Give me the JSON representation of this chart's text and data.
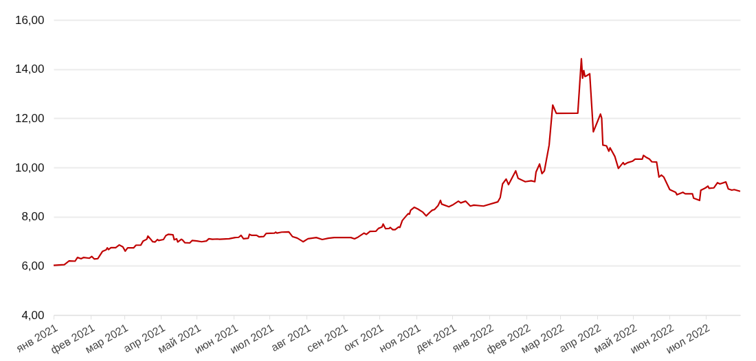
{
  "chart_data": {
    "type": "line",
    "grid": "y",
    "marker": "none",
    "line_style": "solid",
    "xlim": [
      "2021-01-01",
      "2022-07-30"
    ],
    "ylim": [
      4,
      16
    ],
    "yticks": [
      {
        "value": 4,
        "label": "4,00"
      },
      {
        "value": 6,
        "label": "6,00"
      },
      {
        "value": 8,
        "label": "8,00"
      },
      {
        "value": 10,
        "label": "10,00"
      },
      {
        "value": 12,
        "label": "12,00"
      },
      {
        "value": 14,
        "label": "14,00"
      },
      {
        "value": 16,
        "label": "16,00"
      }
    ],
    "xticks": [
      {
        "value": "2021-01-01",
        "label": "янв 2021"
      },
      {
        "value": "2021-02-01",
        "label": "фев 2021"
      },
      {
        "value": "2021-03-01",
        "label": "мар 2021"
      },
      {
        "value": "2021-04-01",
        "label": "апр 2021"
      },
      {
        "value": "2021-05-01",
        "label": "май 2021"
      },
      {
        "value": "2021-06-01",
        "label": "июн 2021"
      },
      {
        "value": "2021-07-01",
        "label": "июл 2021"
      },
      {
        "value": "2021-08-01",
        "label": "авг 2021"
      },
      {
        "value": "2021-09-01",
        "label": "сен 2021"
      },
      {
        "value": "2021-10-01",
        "label": "окт 2021"
      },
      {
        "value": "2021-11-01",
        "label": "ноя 2021"
      },
      {
        "value": "2021-12-01",
        "label": "дек 2021"
      },
      {
        "value": "2022-01-01",
        "label": "янв 2022"
      },
      {
        "value": "2022-02-01",
        "label": "фев 2022"
      },
      {
        "value": "2022-03-01",
        "label": "мар 2022"
      },
      {
        "value": "2022-04-01",
        "label": "апр 2022"
      },
      {
        "value": "2022-05-01",
        "label": "май 2022"
      },
      {
        "value": "2022-06-01",
        "label": "июн 2022"
      },
      {
        "value": "2022-07-01",
        "label": "июл 2022"
      }
    ],
    "series": [
      {
        "color": "#c00000",
        "x": [
          "2021-01-01",
          "2021-01-10",
          "2021-01-14",
          "2021-01-19",
          "2021-01-21",
          "2021-01-24",
          "2021-01-26",
          "2021-01-31",
          "2021-02-02",
          "2021-02-04",
          "2021-02-07",
          "2021-02-11",
          "2021-02-14",
          "2021-02-15",
          "2021-02-16",
          "2021-02-18",
          "2021-02-22",
          "2021-02-25",
          "2021-02-28",
          "2021-03-02",
          "2021-03-04",
          "2021-03-09",
          "2021-03-11",
          "2021-03-15",
          "2021-03-17",
          "2021-03-20",
          "2021-03-21",
          "2021-03-23",
          "2021-03-25",
          "2021-03-27",
          "2021-03-29",
          "2021-03-30",
          "2021-04-03",
          "2021-04-05",
          "2021-04-07",
          "2021-04-11",
          "2021-04-12",
          "2021-04-14",
          "2021-04-15",
          "2021-04-18",
          "2021-04-19",
          "2021-04-21",
          "2021-04-25",
          "2021-04-27",
          "2021-05-01",
          "2021-05-05",
          "2021-05-09",
          "2021-05-11",
          "2021-05-14",
          "2021-05-18",
          "2021-05-20",
          "2021-05-28",
          "2021-06-02",
          "2021-06-05",
          "2021-06-07",
          "2021-06-09",
          "2021-06-13",
          "2021-06-14",
          "2021-06-16",
          "2021-06-20",
          "2021-06-22",
          "2021-06-26",
          "2021-06-28",
          "2021-07-05",
          "2021-07-06",
          "2021-07-07",
          "2021-07-11",
          "2021-07-17",
          "2021-07-20",
          "2021-07-24",
          "2021-07-28",
          "2021-07-29",
          "2021-08-02",
          "2021-08-09",
          "2021-08-14",
          "2021-08-19",
          "2021-08-24",
          "2021-09-07",
          "2021-09-10",
          "2021-09-13",
          "2021-09-18",
          "2021-09-20",
          "2021-09-23",
          "2021-09-28",
          "2021-09-30",
          "2021-10-03",
          "2021-10-04",
          "2021-10-06",
          "2021-10-09",
          "2021-10-10",
          "2021-10-12",
          "2021-10-14",
          "2021-10-17",
          "2021-10-18",
          "2021-10-20",
          "2021-10-24",
          "2021-10-25",
          "2021-10-26",
          "2021-10-27",
          "2021-10-30",
          "2021-11-02",
          "2021-11-06",
          "2021-11-09",
          "2021-11-12",
          "2021-11-14",
          "2021-11-16",
          "2021-11-19",
          "2021-11-21",
          "2021-11-22",
          "2021-11-28",
          "2021-12-01",
          "2021-12-06",
          "2021-12-08",
          "2021-12-12",
          "2021-12-16",
          "2021-12-19",
          "2021-12-27",
          "2022-01-08",
          "2022-01-10",
          "2022-01-12",
          "2022-01-15",
          "2022-01-17",
          "2022-01-23",
          "2022-01-25",
          "2022-01-31",
          "2022-02-05",
          "2022-02-08",
          "2022-02-09",
          "2022-02-12",
          "2022-02-14",
          "2022-02-16",
          "2022-02-20",
          "2022-02-23",
          "2022-02-26",
          "2022-03-16",
          "2022-03-19",
          "2022-03-20",
          "2022-03-21",
          "2022-03-22",
          "2022-03-23",
          "2022-03-26",
          "2022-03-29",
          "2022-04-04",
          "2022-04-05",
          "2022-04-06",
          "2022-04-09",
          "2022-04-11",
          "2022-04-12",
          "2022-04-16",
          "2022-04-19",
          "2022-04-23",
          "2022-04-24",
          "2022-04-27",
          "2022-05-01",
          "2022-05-03",
          "2022-05-09",
          "2022-05-10",
          "2022-05-12",
          "2022-05-15",
          "2022-05-17",
          "2022-05-21",
          "2022-05-23",
          "2022-05-25",
          "2022-05-27",
          "2022-06-01",
          "2022-06-06",
          "2022-06-07",
          "2022-06-12",
          "2022-06-14",
          "2022-06-20",
          "2022-06-21",
          "2022-06-26",
          "2022-06-27",
          "2022-07-01",
          "2022-07-03",
          "2022-07-04",
          "2022-07-08",
          "2022-07-11",
          "2022-07-13",
          "2022-07-18",
          "2022-07-20",
          "2022-07-23",
          "2022-07-25",
          "2022-07-30"
        ],
        "values": [
          6.02,
          6.05,
          6.2,
          6.19,
          6.34,
          6.29,
          6.34,
          6.31,
          6.38,
          6.28,
          6.29,
          6.59,
          6.65,
          6.73,
          6.66,
          6.74,
          6.74,
          6.85,
          6.77,
          6.6,
          6.73,
          6.73,
          6.84,
          6.84,
          7.01,
          7.08,
          7.21,
          7.1,
          6.98,
          6.97,
          7.07,
          7.03,
          7.07,
          7.23,
          7.28,
          7.26,
          7.06,
          7.1,
          6.97,
          7.08,
          7.05,
          6.94,
          6.93,
          7.03,
          7.01,
          6.98,
          7.01,
          7.1,
          7.08,
          7.09,
          7.08,
          7.1,
          7.15,
          7.16,
          7.24,
          7.1,
          7.12,
          7.28,
          7.24,
          7.24,
          7.18,
          7.19,
          7.32,
          7.33,
          7.37,
          7.33,
          7.37,
          7.38,
          7.19,
          7.13,
          7.01,
          6.98,
          7.1,
          7.15,
          7.07,
          7.12,
          7.15,
          7.15,
          7.1,
          7.17,
          7.33,
          7.28,
          7.4,
          7.41,
          7.52,
          7.58,
          7.7,
          7.51,
          7.52,
          7.56,
          7.47,
          7.47,
          7.58,
          7.56,
          7.84,
          8.07,
          8.12,
          8.1,
          8.26,
          8.38,
          8.31,
          8.19,
          8.03,
          8.17,
          8.26,
          8.29,
          8.45,
          8.66,
          8.51,
          8.4,
          8.47,
          8.63,
          8.56,
          8.63,
          8.43,
          8.47,
          8.43,
          8.6,
          8.77,
          9.33,
          9.53,
          9.3,
          9.86,
          9.56,
          9.42,
          9.46,
          9.42,
          9.81,
          10.14,
          9.75,
          9.86,
          10.91,
          12.54,
          12.2,
          12.21,
          14.42,
          13.63,
          13.94,
          13.7,
          13.72,
          13.81,
          11.45,
          12.17,
          12.01,
          10.91,
          10.88,
          10.66,
          10.8,
          10.45,
          9.96,
          10.2,
          10.12,
          10.2,
          10.26,
          10.34,
          10.34,
          10.49,
          10.42,
          10.34,
          10.23,
          10.22,
          9.61,
          9.69,
          9.61,
          9.1,
          8.99,
          8.89,
          8.99,
          8.93,
          8.93,
          8.75,
          8.66,
          9.07,
          9.17,
          9.24,
          9.15,
          9.17,
          9.38,
          9.33,
          9.41,
          9.13,
          9.08,
          9.1,
          9.03
        ]
      }
    ]
  }
}
